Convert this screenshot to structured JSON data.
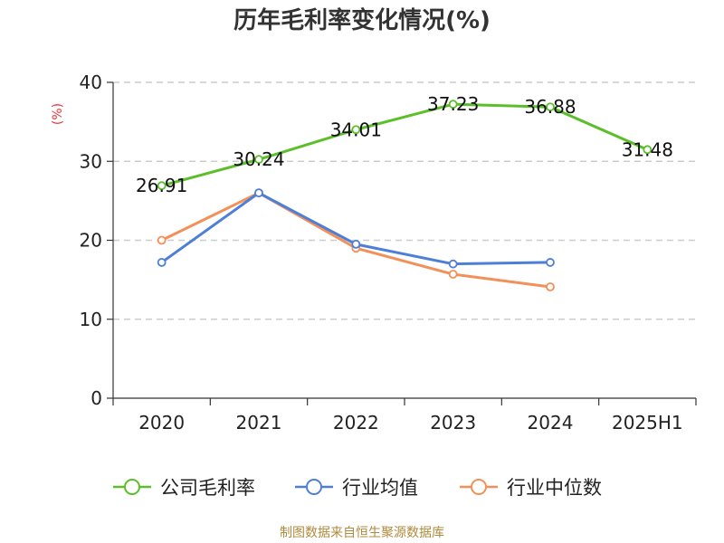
{
  "chart_data": {
    "type": "line",
    "title": "历年毛利率变化情况(%)",
    "unit_label": "(%)",
    "categories": [
      "2020",
      "2021",
      "2022",
      "2023",
      "2024",
      "2025H1"
    ],
    "ylim": [
      0,
      40
    ],
    "yticks": [
      0,
      10,
      20,
      30,
      40
    ],
    "grid": true,
    "legend_position": "bottom",
    "series": [
      {
        "name": "公司毛利率",
        "color": "#5cbf2a",
        "values": [
          26.91,
          30.24,
          34.01,
          37.23,
          36.88,
          31.48
        ],
        "data_labels": [
          "26.91",
          "30.24",
          "34.01",
          "37.23",
          "36.88",
          "31.48"
        ]
      },
      {
        "name": "行业均值",
        "color": "#4e7fd8",
        "values": [
          17.2,
          26.0,
          19.5,
          17.0,
          17.2,
          null
        ]
      },
      {
        "name": "行业中位数",
        "color": "#f39059",
        "values": [
          20.0,
          26.0,
          19.0,
          15.7,
          14.1,
          null
        ]
      }
    ],
    "source": "制图数据来自恒生聚源数据库"
  }
}
